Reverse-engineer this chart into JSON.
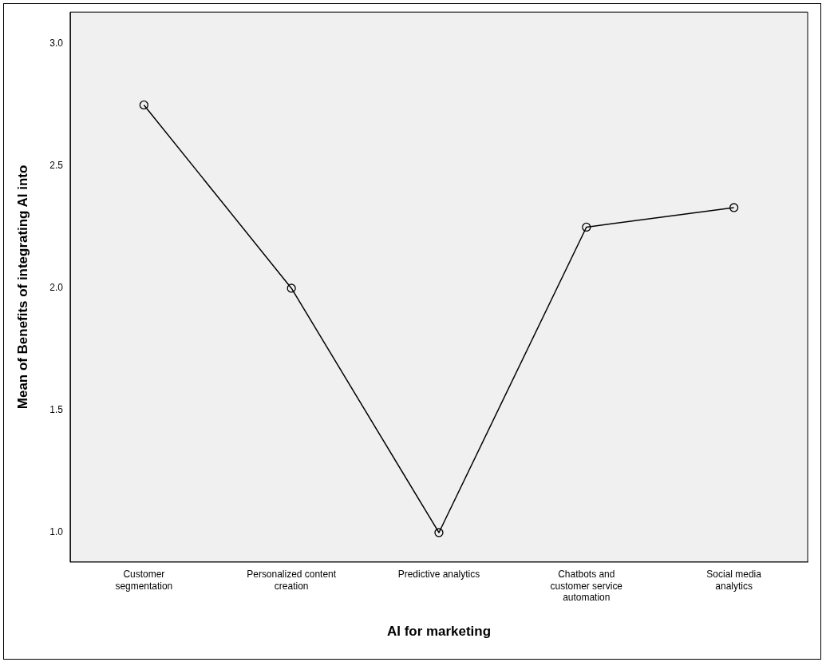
{
  "chart_data": {
    "type": "line",
    "xlabel": "AI for marketing",
    "ylabel": "Mean of Benefits of integrating AI into",
    "categories": [
      "Customer segmentation",
      "Personalized content creation",
      "Predictive analytics",
      "Chatbots and customer service automation",
      "Social media analytics"
    ],
    "series": [
      {
        "color": "#000000",
        "values": [
          2.75,
          2.0,
          1.0,
          2.25,
          2.33
        ]
      }
    ],
    "ylim": [
      0.88,
      3.13
    ],
    "yticks": [
      {
        "value": 1,
        "label": "1.0"
      },
      {
        "value": 1.5,
        "label": "1.5"
      },
      {
        "value": 2,
        "label": "2.0"
      },
      {
        "value": 2.5,
        "label": "2.5"
      },
      {
        "value": 3,
        "label": "3.0"
      }
    ],
    "grid": false,
    "legend": false,
    "marker": "circle",
    "line_style": "solid"
  }
}
